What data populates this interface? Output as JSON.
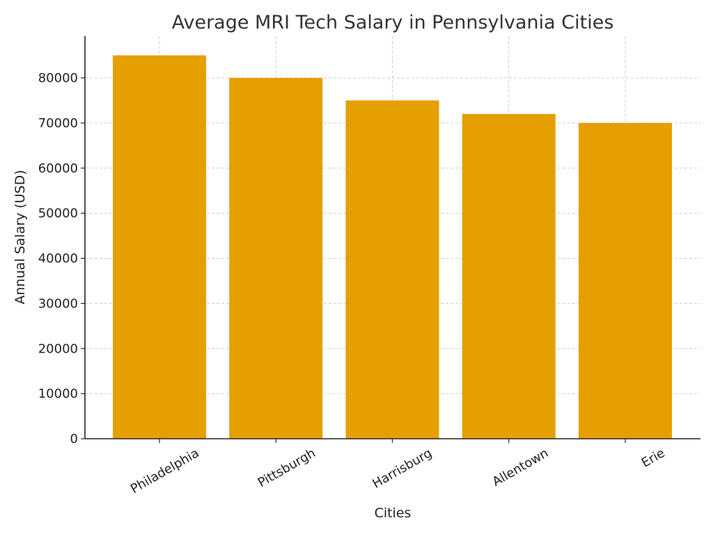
{
  "chart_data": {
    "type": "bar",
    "title": "Average MRI Tech Salary in Pennsylvania Cities",
    "xlabel": "Cities",
    "ylabel": "Annual Salary (USD)",
    "categories": [
      "Philadelphia",
      "Pittsburgh",
      "Harrisburg",
      "Allentown",
      "Erie"
    ],
    "values": [
      85000,
      80000,
      75000,
      72000,
      70000
    ],
    "ylim": [
      0,
      89250
    ],
    "yticks": [
      0,
      10000,
      20000,
      30000,
      40000,
      50000,
      60000,
      70000,
      80000
    ],
    "grid": true,
    "legend": "none",
    "bar_color": "#E69F00",
    "axis_color": "#222222",
    "grid_color": "#cccccc"
  }
}
